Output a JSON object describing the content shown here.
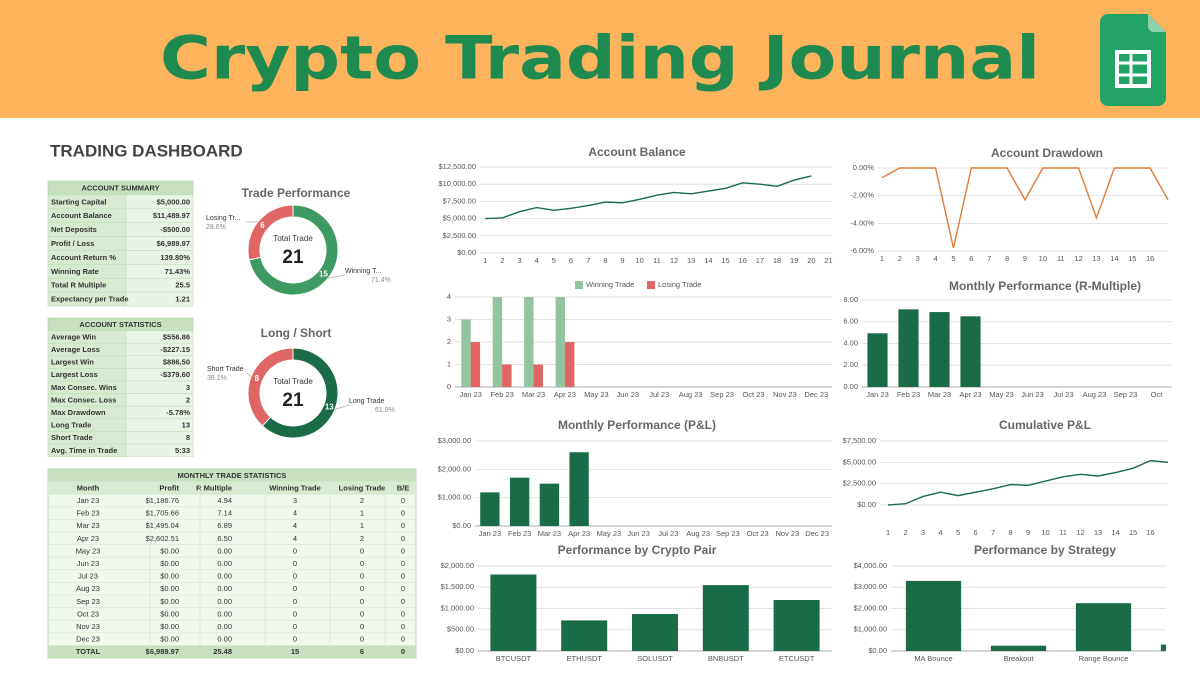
{
  "header": {
    "title": "Crypto Trading Journal"
  },
  "dashboard_title": "TRADING DASHBOARD",
  "account_summary": {
    "title": "ACCOUNT SUMMARY",
    "rows": [
      [
        "Starting Capital",
        "$5,000.00"
      ],
      [
        "Account Balance",
        "$11,489.97"
      ],
      [
        "Net Deposits",
        "-$500.00"
      ],
      [
        "Profit / Loss",
        "$6,989.97"
      ],
      [
        "Account Return %",
        "139.80%"
      ],
      [
        "Winning Rate",
        "71.43%"
      ],
      [
        "Total R Multiple",
        "25.5"
      ],
      [
        "Expectancy per Trade",
        "1.21"
      ]
    ]
  },
  "account_statistics": {
    "title": "ACCOUNT STATISTICS",
    "rows": [
      [
        "Average Win",
        "$556.86"
      ],
      [
        "Average Loss",
        "-$227.15"
      ],
      [
        "Largest Win",
        "$886.50"
      ],
      [
        "Largest Loss",
        "-$379.60"
      ],
      [
        "Max Consec. Wins",
        "3"
      ],
      [
        "Max Consec. Loss",
        "2"
      ],
      [
        "Max Drawdown",
        "-5.78%"
      ],
      [
        "Long Trade",
        "13"
      ],
      [
        "Short Trade",
        "8"
      ],
      [
        "Avg. Time in Trade",
        "5:33"
      ]
    ]
  },
  "monthly_trade_statistics": {
    "title": "MONTHLY TRADE STATISTICS",
    "columns": [
      "Month",
      "Profit",
      "R Multiple",
      "Winning Trade",
      "Losing Trade",
      "B/E"
    ],
    "rows": [
      [
        "Jan 23",
        "$1,186.76",
        "4.94",
        "3",
        "2",
        "0"
      ],
      [
        "Feb 23",
        "$1,705.66",
        "7.14",
        "4",
        "1",
        "0"
      ],
      [
        "Mar 23",
        "$1,495.04",
        "6.89",
        "4",
        "1",
        "0"
      ],
      [
        "Apr 23",
        "$2,602.51",
        "6.50",
        "4",
        "2",
        "0"
      ],
      [
        "May 23",
        "$0.00",
        "0.00",
        "0",
        "0",
        "0"
      ],
      [
        "Jun 23",
        "$0.00",
        "0.00",
        "0",
        "0",
        "0"
      ],
      [
        "Jul 23",
        "$0.00",
        "0.00",
        "0",
        "0",
        "0"
      ],
      [
        "Aug 23",
        "$0.00",
        "0.00",
        "0",
        "0",
        "0"
      ],
      [
        "Sep 23",
        "$0.00",
        "0.00",
        "0",
        "0",
        "0"
      ],
      [
        "Oct 23",
        "$0.00",
        "0.00",
        "0",
        "0",
        "0"
      ],
      [
        "Nov 23",
        "$0.00",
        "0.00",
        "0",
        "0",
        "0"
      ],
      [
        "Dec 23",
        "$0.00",
        "0.00",
        "0",
        "0",
        "0"
      ]
    ],
    "total": [
      "TOTAL",
      "$6,989.97",
      "25.48",
      "15",
      "6",
      "0"
    ]
  },
  "chart_data": [
    {
      "type": "donut",
      "title": "Trade Performance",
      "center_label": "Total Trade",
      "total": 21,
      "categories": [
        "Losing Tr...",
        "Winning T..."
      ],
      "values": [
        6,
        15
      ],
      "percent_labels": [
        "28.6%",
        "71.4%"
      ],
      "colors": [
        "#e06666",
        "#3d9a62"
      ]
    },
    {
      "type": "donut",
      "title": "Long / Short",
      "center_label": "Total Trade",
      "total": 21,
      "categories": [
        "Short Trade",
        "Long Trade"
      ],
      "values": [
        8,
        13
      ],
      "percent_labels": [
        "38.1%",
        "61.9%"
      ],
      "colors": [
        "#e06666",
        "#1a6b48"
      ]
    },
    {
      "type": "line",
      "title": "Account Balance",
      "color": "#1a6b48",
      "x": [
        1,
        2,
        3,
        4,
        5,
        6,
        7,
        8,
        9,
        10,
        11,
        12,
        13,
        14,
        15,
        16,
        17,
        18,
        19,
        20
      ],
      "values": [
        5000,
        5100,
        6000,
        6600,
        6200,
        6500,
        6900,
        7400,
        7300,
        7800,
        8400,
        8800,
        8600,
        9000,
        9400,
        10200,
        10000,
        9700,
        10600,
        11200
      ],
      "xlim": [
        0.7,
        21.2
      ],
      "xticks": [
        1,
        2,
        3,
        4,
        5,
        6,
        7,
        8,
        9,
        10,
        11,
        12,
        13,
        14,
        15,
        16,
        17,
        18,
        19,
        20,
        21
      ],
      "ylim": [
        0,
        12500
      ],
      "yticks": [
        {
          "value": 0,
          "label": "$0.00"
        },
        {
          "value": 2500,
          "label": "$2,500.00"
        },
        {
          "value": 5000,
          "label": "$5,000.00"
        },
        {
          "value": 7500,
          "label": "$7,500.00"
        },
        {
          "value": 10000,
          "label": "$10,000.00"
        },
        {
          "value": 12500,
          "label": "$12,500.00"
        }
      ],
      "grid": true
    },
    {
      "type": "line",
      "title": "Account Drawdown",
      "color": "#e07b39",
      "x": [
        1,
        2,
        3,
        4,
        5,
        6,
        7,
        8,
        9,
        10,
        11,
        12,
        13,
        14,
        15,
        16,
        17
      ],
      "values": [
        -0.7,
        0,
        0,
        0,
        -5.78,
        0,
        0,
        0,
        -2.3,
        0,
        0,
        0,
        -3.6,
        0,
        0,
        0,
        -2.3
      ],
      "xlim": [
        0.78,
        17
      ],
      "xticks": [
        1,
        2,
        3,
        4,
        5,
        6,
        7,
        8,
        9,
        10,
        11,
        12,
        13,
        14,
        15,
        16
      ],
      "ylim": [
        -6,
        0
      ],
      "yticks": [
        {
          "value": 0,
          "label": "0.00%"
        },
        {
          "value": -2,
          "label": "-2.00%"
        },
        {
          "value": -4,
          "label": "-4.00%"
        },
        {
          "value": -6,
          "label": "-6.00%"
        }
      ],
      "grid": true
    },
    {
      "type": "bar",
      "legend": "top",
      "categories": [
        "Jan 23",
        "Feb 23",
        "Mar 23",
        "Apr 23",
        "May 23",
        "Jun 23",
        "Jul 23",
        "Aug 23",
        "Sep 23",
        "Oct 23",
        "Nov 23",
        "Dec 23"
      ],
      "series": [
        {
          "name": "Winning Trade",
          "color": "#93c4a0",
          "values": [
            3,
            4,
            4,
            4,
            0,
            0,
            0,
            0,
            0,
            0,
            0,
            0
          ]
        },
        {
          "name": "Losing Trade",
          "color": "#e06666",
          "values": [
            2,
            1,
            1,
            2,
            0,
            0,
            0,
            0,
            0,
            0,
            0,
            0
          ]
        }
      ],
      "ylim": [
        0,
        4
      ],
      "yticks": [
        0,
        1,
        2,
        3,
        4
      ],
      "grid": true
    },
    {
      "type": "bar",
      "title": "Monthly Performance (R-Multiple)",
      "color": "#1a6b48",
      "categories": [
        "Jan 23",
        "Feb 23",
        "Mar 23",
        "Apr 23",
        "May 23",
        "Jun 23",
        "Jul 23",
        "Aug 23",
        "Sep 23",
        "Oct"
      ],
      "values": [
        4.94,
        7.14,
        6.89,
        6.5,
        0,
        0,
        0,
        0,
        0,
        0
      ],
      "ylim": [
        0,
        8
      ],
      "yticks": [
        {
          "value": 0,
          "label": "0.00"
        },
        {
          "value": 2,
          "label": "2.00"
        },
        {
          "value": 4,
          "label": "4.00"
        },
        {
          "value": 6,
          "label": "6.00"
        },
        {
          "value": 8,
          "label": "8.00"
        }
      ],
      "grid": true
    },
    {
      "type": "bar",
      "title": "Monthly Performance (P&L)",
      "color": "#1a6b48",
      "categories": [
        "Jan 23",
        "Feb 23",
        "Mar 23",
        "Apr 23",
        "May 23",
        "Jun 23",
        "Jul 23",
        "Aug 23",
        "Sep 23",
        "Oct 23",
        "Nov 23",
        "Dec 23"
      ],
      "values": [
        1186.76,
        1705.66,
        1495.04,
        2602.51,
        0,
        0,
        0,
        0,
        0,
        0,
        0,
        0
      ],
      "ylim": [
        0,
        3000
      ],
      "yticks": [
        {
          "value": 0,
          "label": "$0.00"
        },
        {
          "value": 1000,
          "label": "$1,000.00"
        },
        {
          "value": 2000,
          "label": "$2,000.00"
        },
        {
          "value": 3000,
          "label": "$3,000.00"
        }
      ],
      "grid": true
    },
    {
      "type": "line",
      "title": "Cumulative P&L",
      "color": "#1a6b48",
      "x": [
        1,
        2,
        3,
        4,
        5,
        6,
        7,
        8,
        9,
        10,
        11,
        12,
        13,
        14,
        15,
        16,
        17
      ],
      "values": [
        0,
        150,
        1000,
        1500,
        1100,
        1500,
        1900,
        2400,
        2300,
        2800,
        3300,
        3600,
        3400,
        3800,
        4300,
        5200,
        5000
      ],
      "xlim": [
        0.54,
        17
      ],
      "xticks": [
        1,
        2,
        3,
        4,
        5,
        6,
        7,
        8,
        9,
        10,
        11,
        12,
        13,
        14,
        15,
        16
      ],
      "ylim": [
        0,
        7500
      ],
      "yticks": [
        {
          "value": 0,
          "label": "$0.00"
        },
        {
          "value": 2500,
          "label": "$2,500.00"
        },
        {
          "value": 5000,
          "label": "$5,000.00"
        },
        {
          "value": 7500,
          "label": "$7,500.00"
        }
      ],
      "grid": true
    },
    {
      "type": "bar",
      "title": "Performance by Crypto Pair",
      "color": "#1a6b48",
      "categories": [
        "BTCUSDT",
        "ETHUSDT",
        "SOLUSDT",
        "BNBUSDT",
        "ETCUSDT"
      ],
      "values": [
        1800,
        720,
        870,
        1550,
        1200
      ],
      "ylim": [
        0,
        2000
      ],
      "yticks": [
        {
          "value": 0,
          "label": "$0.00"
        },
        {
          "value": 500,
          "label": "$500.00"
        },
        {
          "value": 1000,
          "label": "$1,000.00"
        },
        {
          "value": 1500,
          "label": "$1,500.00"
        },
        {
          "value": 2000,
          "label": "$2,000.00"
        }
      ],
      "grid": true
    },
    {
      "type": "bar",
      "title": "Performance by Strategy",
      "color": "#1a6b48",
      "categories": [
        "MA Bounce",
        "Breakout",
        "Range Bounce",
        null
      ],
      "values": [
        3300,
        250,
        2250,
        300
      ],
      "ylim": [
        0,
        4000
      ],
      "yticks": [
        {
          "value": 0,
          "label": "$0.00"
        },
        {
          "value": 1000,
          "label": "$1,000.00"
        },
        {
          "value": 2000,
          "label": "$2,000.00"
        },
        {
          "value": 3000,
          "label": "$3,000.00"
        },
        {
          "value": 4000,
          "label": "$4,000.00"
        }
      ],
      "grid": true
    }
  ]
}
